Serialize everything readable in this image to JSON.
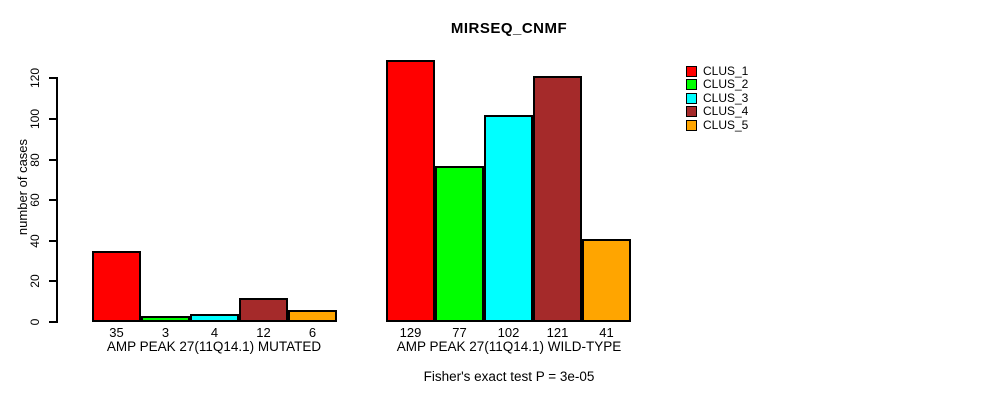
{
  "chart_data": {
    "type": "bar",
    "title": "MIRSEQ_CNMF",
    "ylabel": "number of cases",
    "ylim": [
      0,
      130
    ],
    "yticks": [
      0,
      20,
      40,
      60,
      80,
      100,
      120
    ],
    "grid": false,
    "legend_position": "right",
    "series": [
      {
        "name": "CLUS_1",
        "color": "#ff0000"
      },
      {
        "name": "CLUS_2",
        "color": "#00ff00"
      },
      {
        "name": "CLUS_3",
        "color": "#00ffff"
      },
      {
        "name": "CLUS_4",
        "color": "#a52a2a"
      },
      {
        "name": "CLUS_5",
        "color": "#ffa500"
      }
    ],
    "groups": [
      {
        "label": "AMP PEAK 27(11Q14.1) MUTATED",
        "values": [
          35,
          3,
          4,
          12,
          6
        ]
      },
      {
        "label": "AMP PEAK 27(11Q14.1) WILD-TYPE",
        "values": [
          129,
          77,
          102,
          121,
          41
        ]
      }
    ],
    "bar_value_labels_shown": true,
    "axis_color": "#000000",
    "bar_border_color": "#000000",
    "footnote": "Fisher's exact test P = 3e-05"
  }
}
